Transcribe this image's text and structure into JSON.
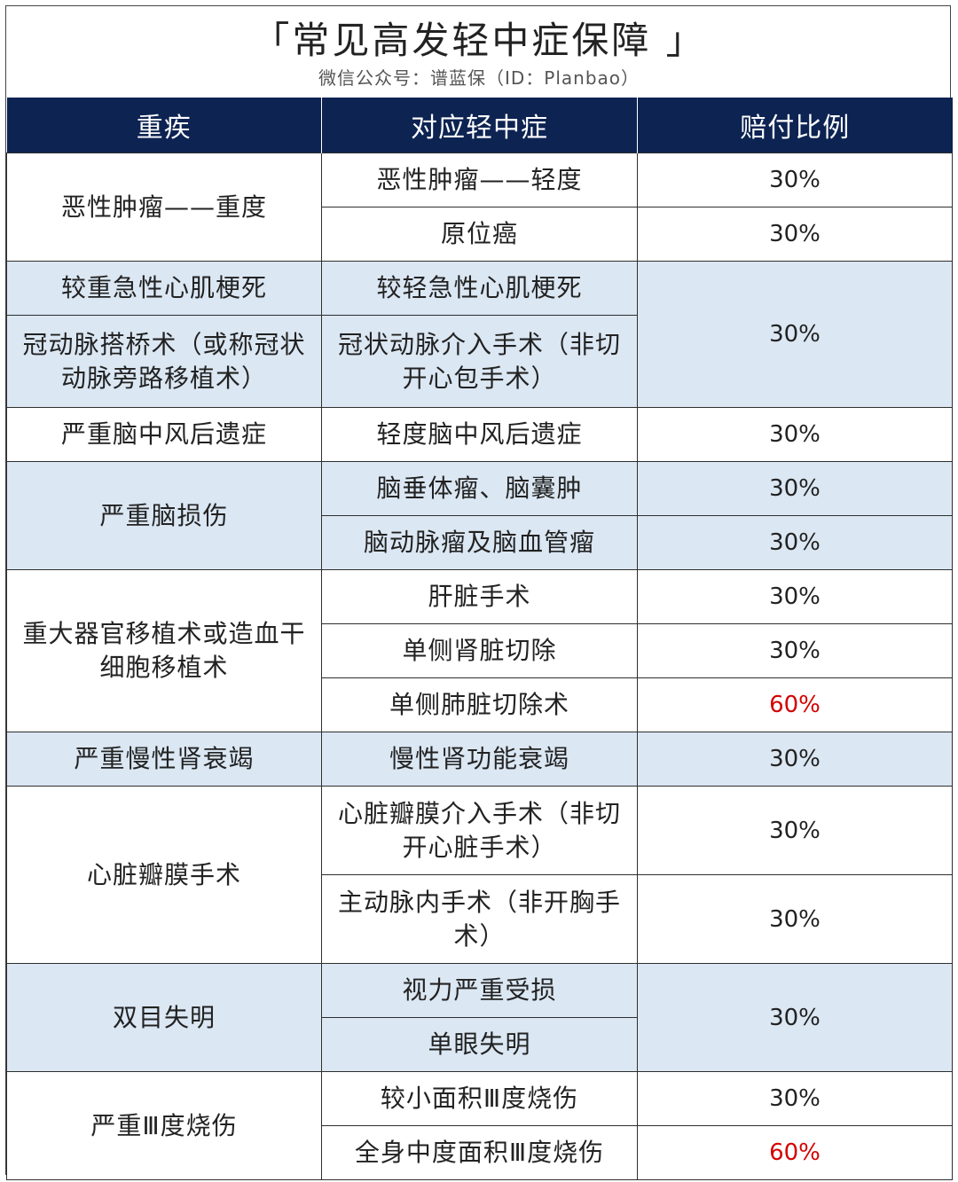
{
  "header": {
    "title": "「常见高发轻中症保障 」",
    "subtitle": "微信公众号：谱蓝保（ID：Planbao）"
  },
  "table": {
    "columns": [
      "重疾",
      "对应轻中症",
      "赔付比例"
    ],
    "groups": [
      {
        "critical": "恶性肿瘤——重度",
        "rows": [
          {
            "mild": "恶性肿瘤——轻度",
            "ratio": "30%"
          },
          {
            "mild": "原位癌",
            "ratio": "30%"
          }
        ]
      },
      {
        "critical": "较重急性心肌梗死",
        "rows": [
          {
            "mild": "较轻急性心肌梗死",
            "ratio": "30%"
          }
        ]
      },
      {
        "critical": "冠动脉搭桥术（或称冠状动脉旁路移植术）",
        "rows": [
          {
            "mild": "冠状动脉介入手术（非切开心包手术）"
          }
        ]
      },
      {
        "critical": "严重脑中风后遗症",
        "rows": [
          {
            "mild": "轻度脑中风后遗症",
            "ratio": "30%"
          }
        ]
      },
      {
        "critical": "严重脑损伤",
        "rows": [
          {
            "mild": "脑垂体瘤、脑囊肿",
            "ratio": "30%"
          },
          {
            "mild": "脑动脉瘤及脑血管瘤",
            "ratio": "30%"
          }
        ]
      },
      {
        "critical": "重大器官移植术或造血干细胞移植术",
        "rows": [
          {
            "mild": "肝脏手术",
            "ratio": "30%"
          },
          {
            "mild": "单侧肾脏切除",
            "ratio": "30%"
          },
          {
            "mild": "单侧肺脏切除术",
            "ratio": "60%"
          }
        ]
      },
      {
        "critical": "严重慢性肾衰竭",
        "rows": [
          {
            "mild": "慢性肾功能衰竭",
            "ratio": "30%"
          }
        ]
      },
      {
        "critical": "心脏瓣膜手术",
        "rows": [
          {
            "mild": "心脏瓣膜介入手术（非切开心脏手术）",
            "ratio": "30%"
          },
          {
            "mild": "主动脉内手术（非开胸手术）",
            "ratio": "30%"
          }
        ]
      },
      {
        "critical": "双目失明",
        "rows": [
          {
            "mild": "视力严重受损",
            "ratio": "30%"
          },
          {
            "mild": "单眼失明"
          }
        ]
      },
      {
        "critical": "严重Ⅲ度烧伤",
        "rows": [
          {
            "mild": "较小面积Ⅲ度烧伤",
            "ratio": "30%"
          },
          {
            "mild": "全身中度面积Ⅲ度烧伤",
            "ratio": "60%"
          }
        ]
      }
    ]
  },
  "colors": {
    "header_bg": "#0d2352",
    "band_blue": "#dbe7f3",
    "highlight_red": "#d40000"
  }
}
